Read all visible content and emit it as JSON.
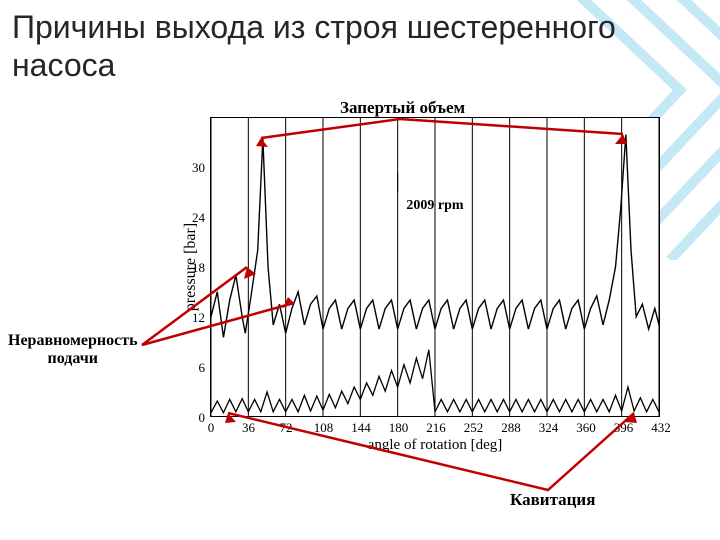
{
  "title": "Причины выхода из строя шестеренного насоса",
  "chart": {
    "type": "line",
    "rpm_label": "2009 rpm",
    "xlabel": "angle of rotation [deg]",
    "ylabel": "pressure [bar]",
    "xlim": [
      0,
      432
    ],
    "ylim": [
      0,
      36
    ],
    "xticks": [
      0,
      36,
      72,
      108,
      144,
      180,
      216,
      252,
      288,
      324,
      360,
      396,
      432
    ],
    "yticks": [
      0,
      6,
      12,
      18,
      24,
      30
    ],
    "background_color": "#ffffff",
    "grid_color": "#000000",
    "line_color": "#000000",
    "line_width": 1.4,
    "series_upper": {
      "description": "pressure signal with trapped-volume spikes and delivery ripple",
      "data": [
        [
          0,
          12
        ],
        [
          6,
          15
        ],
        [
          12,
          9.5
        ],
        [
          18,
          14
        ],
        [
          24,
          17
        ],
        [
          30,
          12
        ],
        [
          33,
          10
        ],
        [
          38,
          14
        ],
        [
          45,
          20
        ],
        [
          50,
          33.5
        ],
        [
          55,
          18
        ],
        [
          60,
          11
        ],
        [
          66,
          13.5
        ],
        [
          72,
          10
        ],
        [
          78,
          13
        ],
        [
          84,
          15
        ],
        [
          90,
          11
        ],
        [
          96,
          13.5
        ],
        [
          102,
          14.5
        ],
        [
          108,
          10.5
        ],
        [
          114,
          13
        ],
        [
          120,
          14
        ],
        [
          126,
          10.5
        ],
        [
          132,
          13
        ],
        [
          138,
          14
        ],
        [
          144,
          10.5
        ],
        [
          150,
          13
        ],
        [
          156,
          14
        ],
        [
          162,
          10.5
        ],
        [
          168,
          13
        ],
        [
          174,
          14
        ],
        [
          180,
          10.5
        ],
        [
          186,
          13
        ],
        [
          192,
          14
        ],
        [
          198,
          10.5
        ],
        [
          204,
          13
        ],
        [
          210,
          14
        ],
        [
          216,
          10.5
        ],
        [
          222,
          13
        ],
        [
          228,
          14
        ],
        [
          234,
          10.5
        ],
        [
          240,
          13
        ],
        [
          246,
          14
        ],
        [
          252,
          10.5
        ],
        [
          258,
          13
        ],
        [
          264,
          14
        ],
        [
          270,
          10.5
        ],
        [
          276,
          13
        ],
        [
          282,
          14
        ],
        [
          288,
          10.5
        ],
        [
          294,
          13
        ],
        [
          300,
          14
        ],
        [
          306,
          10.5
        ],
        [
          312,
          13
        ],
        [
          318,
          14
        ],
        [
          324,
          10.5
        ],
        [
          330,
          13
        ],
        [
          336,
          14
        ],
        [
          342,
          10.5
        ],
        [
          348,
          13
        ],
        [
          354,
          14
        ],
        [
          360,
          10.5
        ],
        [
          366,
          13
        ],
        [
          372,
          14.5
        ],
        [
          378,
          11
        ],
        [
          384,
          14
        ],
        [
          390,
          18
        ],
        [
          395,
          25
        ],
        [
          400,
          34
        ],
        [
          405,
          20
        ],
        [
          410,
          12
        ],
        [
          416,
          13.5
        ],
        [
          422,
          10.5
        ],
        [
          428,
          13
        ],
        [
          432,
          11
        ]
      ]
    },
    "series_lower": {
      "description": "cavitation pulses near zero",
      "data": [
        [
          0,
          0.4
        ],
        [
          6,
          1.8
        ],
        [
          12,
          0.4
        ],
        [
          18,
          2.0
        ],
        [
          24,
          0.5
        ],
        [
          30,
          2.1
        ],
        [
          36,
          0.5
        ],
        [
          42,
          2.0
        ],
        [
          48,
          0.5
        ],
        [
          54,
          2.9
        ],
        [
          60,
          0.5
        ],
        [
          66,
          2.0
        ],
        [
          72,
          0.5
        ],
        [
          78,
          2.0
        ],
        [
          84,
          0.5
        ],
        [
          90,
          2.5
        ],
        [
          96,
          0.6
        ],
        [
          102,
          2.4
        ],
        [
          108,
          0.7
        ],
        [
          114,
          2.6
        ],
        [
          120,
          1.0
        ],
        [
          126,
          3.0
        ],
        [
          132,
          1.5
        ],
        [
          138,
          3.5
        ],
        [
          144,
          2.0
        ],
        [
          150,
          4.0
        ],
        [
          156,
          2.5
        ],
        [
          162,
          4.8
        ],
        [
          168,
          3.0
        ],
        [
          174,
          5.5
        ],
        [
          180,
          3.5
        ],
        [
          186,
          6.2
        ],
        [
          192,
          4.0
        ],
        [
          198,
          7.0
        ],
        [
          204,
          4.5
        ],
        [
          210,
          8.0
        ],
        [
          216,
          0.5
        ],
        [
          222,
          2.0
        ],
        [
          228,
          0.5
        ],
        [
          234,
          2.0
        ],
        [
          240,
          0.5
        ],
        [
          246,
          2.0
        ],
        [
          252,
          0.5
        ],
        [
          258,
          2.0
        ],
        [
          264,
          0.5
        ],
        [
          270,
          2.0
        ],
        [
          276,
          0.5
        ],
        [
          282,
          2.0
        ],
        [
          288,
          0.5
        ],
        [
          294,
          2.0
        ],
        [
          300,
          0.5
        ],
        [
          306,
          2.0
        ],
        [
          312,
          0.5
        ],
        [
          318,
          2.0
        ],
        [
          324,
          0.5
        ],
        [
          330,
          2.0
        ],
        [
          336,
          0.5
        ],
        [
          342,
          2.0
        ],
        [
          348,
          0.5
        ],
        [
          354,
          2.0
        ],
        [
          360,
          0.5
        ],
        [
          366,
          2.0
        ],
        [
          372,
          0.5
        ],
        [
          378,
          2.0
        ],
        [
          384,
          0.5
        ],
        [
          390,
          2.5
        ],
        [
          396,
          0.6
        ],
        [
          402,
          3.5
        ],
        [
          408,
          0.6
        ],
        [
          414,
          2.2
        ],
        [
          420,
          0.5
        ],
        [
          426,
          2.0
        ],
        [
          432,
          0.5
        ]
      ]
    }
  },
  "annotations": {
    "trapped_volume": {
      "label": "Запертый объем",
      "color": "#c00000"
    },
    "uneven_delivery": {
      "label_line1": "Неравномерность",
      "label_line2": "подачи",
      "color": "#c00000"
    },
    "cavitation": {
      "label": "Кавитация",
      "color": "#c00000"
    }
  },
  "decoration": {
    "lines_color": "#49b7e8",
    "opacity": 0.35
  }
}
